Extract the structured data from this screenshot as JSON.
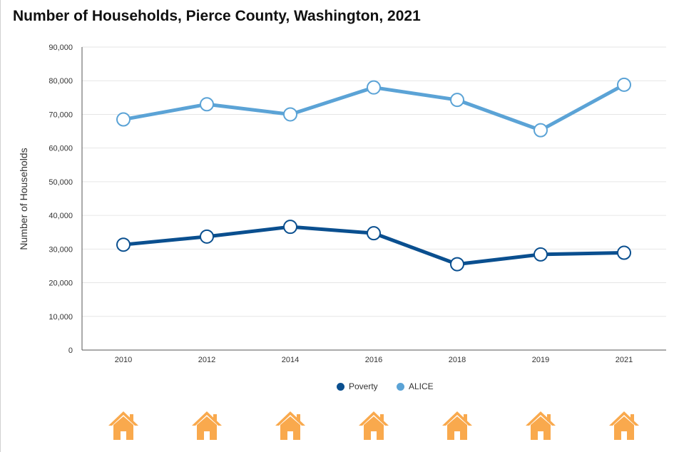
{
  "title": "Number of Households, Pierce County, Washington, 2021",
  "colors": {
    "poverty": "#0a4f8f",
    "alice": "#5ba3d6",
    "house": "#f9a94d",
    "grid": "#e6e6e6",
    "axis": "#333333"
  },
  "icons": [
    "house-icon"
  ],
  "chart_data": {
    "type": "line",
    "title": "Number of Households, Pierce County, Washington, 2021",
    "xlabel": "",
    "ylabel": "Number of Households",
    "categories": [
      "2010",
      "2012",
      "2014",
      "2016",
      "2018",
      "2019",
      "2021"
    ],
    "ylim": [
      0,
      90000
    ],
    "yticks": [
      "0",
      "10,000",
      "20,000",
      "30,000",
      "40,000",
      "50,000",
      "60,000",
      "70,000",
      "80,000",
      "90,000"
    ],
    "grid": true,
    "legend_position": "bottom",
    "series": [
      {
        "name": "Poverty",
        "values": [
          31300,
          33700,
          36600,
          34700,
          25500,
          28400,
          28900
        ]
      },
      {
        "name": "ALICE",
        "values": [
          68500,
          73000,
          70000,
          78000,
          74300,
          65300,
          78800
        ]
      }
    ]
  }
}
